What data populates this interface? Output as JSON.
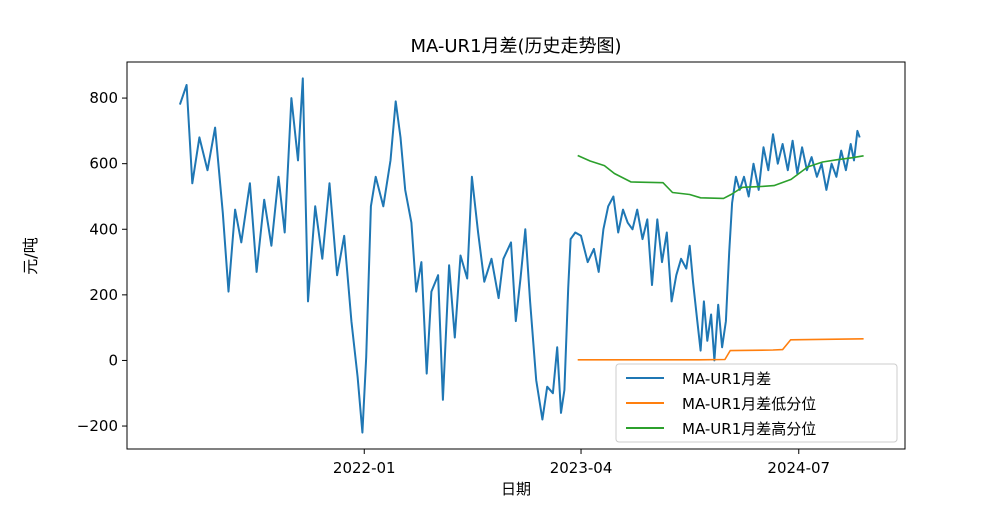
{
  "chart_data": {
    "type": "line",
    "title": "MA-UR1月差(历史走势图)",
    "xlabel": "日期",
    "ylabel": "元/吨",
    "xlim": [
      "2020-08-21",
      "2025-02-09"
    ],
    "ylim": [
      -270,
      910
    ],
    "x_ticks": [
      "2022-01",
      "2023-04",
      "2024-07"
    ],
    "x_tick_dates": [
      "2022-01-01",
      "2023-04-01",
      "2024-07-01"
    ],
    "y_ticks": [
      -200,
      0,
      200,
      400,
      600,
      800
    ],
    "y_tick_labels": [
      "−200",
      "0",
      "200",
      "400",
      "600",
      "800"
    ],
    "grid": false,
    "legend_position": "lower-right",
    "series": [
      {
        "name": "MA-UR1月差",
        "color": "#1f77b4",
        "points": [
          [
            "2020-12-10",
            780
          ],
          [
            "2020-12-24",
            840
          ],
          [
            "2021-01-05",
            540
          ],
          [
            "2021-01-20",
            680
          ],
          [
            "2021-02-06",
            580
          ],
          [
            "2021-02-22",
            710
          ],
          [
            "2021-03-10",
            450
          ],
          [
            "2021-03-22",
            210
          ],
          [
            "2021-04-05",
            460
          ],
          [
            "2021-04-18",
            360
          ],
          [
            "2021-05-06",
            540
          ],
          [
            "2021-05-20",
            270
          ],
          [
            "2021-06-05",
            490
          ],
          [
            "2021-06-20",
            350
          ],
          [
            "2021-07-05",
            560
          ],
          [
            "2021-07-18",
            390
          ],
          [
            "2021-08-01",
            800
          ],
          [
            "2021-08-15",
            610
          ],
          [
            "2021-08-25",
            860
          ],
          [
            "2021-09-05",
            180
          ],
          [
            "2021-09-20",
            470
          ],
          [
            "2021-10-05",
            310
          ],
          [
            "2021-10-20",
            540
          ],
          [
            "2021-11-05",
            260
          ],
          [
            "2021-11-20",
            380
          ],
          [
            "2021-12-05",
            120
          ],
          [
            "2021-12-18",
            -50
          ],
          [
            "2021-12-28",
            -220
          ],
          [
            "2022-01-05",
            10
          ],
          [
            "2022-01-15",
            470
          ],
          [
            "2022-01-25",
            560
          ],
          [
            "2022-02-10",
            470
          ],
          [
            "2022-02-25",
            610
          ],
          [
            "2022-03-08",
            790
          ],
          [
            "2022-03-18",
            680
          ],
          [
            "2022-03-28",
            520
          ],
          [
            "2022-04-10",
            420
          ],
          [
            "2022-04-20",
            210
          ],
          [
            "2022-05-01",
            300
          ],
          [
            "2022-05-12",
            -40
          ],
          [
            "2022-05-22",
            210
          ],
          [
            "2022-06-05",
            260
          ],
          [
            "2022-06-15",
            -120
          ],
          [
            "2022-06-28",
            290
          ],
          [
            "2022-07-10",
            70
          ],
          [
            "2022-07-22",
            320
          ],
          [
            "2022-08-05",
            250
          ],
          [
            "2022-08-15",
            560
          ],
          [
            "2022-08-28",
            390
          ],
          [
            "2022-09-10",
            240
          ],
          [
            "2022-09-25",
            310
          ],
          [
            "2022-10-10",
            190
          ],
          [
            "2022-10-20",
            310
          ],
          [
            "2022-11-05",
            360
          ],
          [
            "2022-11-15",
            120
          ],
          [
            "2022-11-25",
            250
          ],
          [
            "2022-12-05",
            400
          ],
          [
            "2022-12-15",
            180
          ],
          [
            "2022-12-28",
            -60
          ],
          [
            "2023-01-10",
            -180
          ],
          [
            "2023-01-20",
            -80
          ],
          [
            "2023-02-01",
            -100
          ],
          [
            "2023-02-10",
            40
          ],
          [
            "2023-02-18",
            -160
          ],
          [
            "2023-02-25",
            -90
          ],
          [
            "2023-03-05",
            220
          ],
          [
            "2023-03-10",
            370
          ],
          [
            "2023-03-20",
            390
          ],
          [
            "2023-04-01",
            380
          ],
          [
            "2023-04-15",
            300
          ],
          [
            "2023-04-28",
            340
          ],
          [
            "2023-05-08",
            270
          ],
          [
            "2023-05-18",
            400
          ],
          [
            "2023-05-28",
            470
          ],
          [
            "2023-06-08",
            500
          ],
          [
            "2023-06-18",
            390
          ],
          [
            "2023-06-28",
            460
          ],
          [
            "2023-07-08",
            420
          ],
          [
            "2023-07-18",
            400
          ],
          [
            "2023-07-28",
            460
          ],
          [
            "2023-08-08",
            370
          ],
          [
            "2023-08-18",
            430
          ],
          [
            "2023-08-28",
            230
          ],
          [
            "2023-09-08",
            430
          ],
          [
            "2023-09-18",
            300
          ],
          [
            "2023-09-28",
            390
          ],
          [
            "2023-10-08",
            180
          ],
          [
            "2023-10-18",
            260
          ],
          [
            "2023-10-28",
            310
          ],
          [
            "2023-11-08",
            280
          ],
          [
            "2023-11-15",
            350
          ],
          [
            "2023-11-22",
            240
          ],
          [
            "2023-12-01",
            120
          ],
          [
            "2023-12-08",
            30
          ],
          [
            "2023-12-15",
            180
          ],
          [
            "2023-12-22",
            60
          ],
          [
            "2023-12-30",
            140
          ],
          [
            "2024-01-06",
            0
          ],
          [
            "2024-01-14",
            170
          ],
          [
            "2024-01-22",
            40
          ],
          [
            "2024-01-30",
            120
          ],
          [
            "2024-02-06",
            330
          ],
          [
            "2024-02-12",
            480
          ],
          [
            "2024-02-20",
            560
          ],
          [
            "2024-02-28",
            520
          ],
          [
            "2024-03-08",
            560
          ],
          [
            "2024-03-18",
            500
          ],
          [
            "2024-03-28",
            600
          ],
          [
            "2024-04-08",
            520
          ],
          [
            "2024-04-18",
            650
          ],
          [
            "2024-04-28",
            580
          ],
          [
            "2024-05-08",
            690
          ],
          [
            "2024-05-18",
            600
          ],
          [
            "2024-05-28",
            660
          ],
          [
            "2024-06-08",
            580
          ],
          [
            "2024-06-18",
            670
          ],
          [
            "2024-06-28",
            570
          ],
          [
            "2024-07-08",
            650
          ],
          [
            "2024-07-18",
            580
          ],
          [
            "2024-07-28",
            620
          ],
          [
            "2024-08-08",
            560
          ],
          [
            "2024-08-18",
            600
          ],
          [
            "2024-08-28",
            520
          ],
          [
            "2024-09-08",
            600
          ],
          [
            "2024-09-18",
            560
          ],
          [
            "2024-09-28",
            640
          ],
          [
            "2024-10-08",
            580
          ],
          [
            "2024-10-18",
            660
          ],
          [
            "2024-10-25",
            610
          ],
          [
            "2024-11-01",
            700
          ],
          [
            "2024-11-06",
            680
          ]
        ]
      },
      {
        "name": "MA-UR1月差低分位",
        "color": "#ff7f0e",
        "points": [
          [
            "2023-03-25",
            2
          ],
          [
            "2023-12-05",
            2
          ],
          [
            "2024-01-28",
            3
          ],
          [
            "2024-02-08",
            30
          ],
          [
            "2024-05-08",
            32
          ],
          [
            "2024-05-28",
            33
          ],
          [
            "2024-06-14",
            63
          ],
          [
            "2024-11-14",
            66
          ]
        ]
      },
      {
        "name": "MA-UR1月差高分位",
        "color": "#2ca02c",
        "points": [
          [
            "2023-03-25",
            625
          ],
          [
            "2023-04-20",
            608
          ],
          [
            "2023-05-20",
            594
          ],
          [
            "2023-06-10",
            570
          ],
          [
            "2023-07-15",
            544
          ],
          [
            "2023-09-20",
            542
          ],
          [
            "2023-10-10",
            512
          ],
          [
            "2023-11-15",
            506
          ],
          [
            "2023-12-08",
            496
          ],
          [
            "2024-01-25",
            494
          ],
          [
            "2024-02-10",
            506
          ],
          [
            "2024-03-05",
            528
          ],
          [
            "2024-04-10",
            530
          ],
          [
            "2024-05-10",
            533
          ],
          [
            "2024-06-15",
            552
          ],
          [
            "2024-07-20",
            590
          ],
          [
            "2024-08-20",
            605
          ],
          [
            "2024-09-20",
            612
          ],
          [
            "2024-10-20",
            618
          ],
          [
            "2024-11-14",
            624
          ]
        ]
      }
    ]
  }
}
